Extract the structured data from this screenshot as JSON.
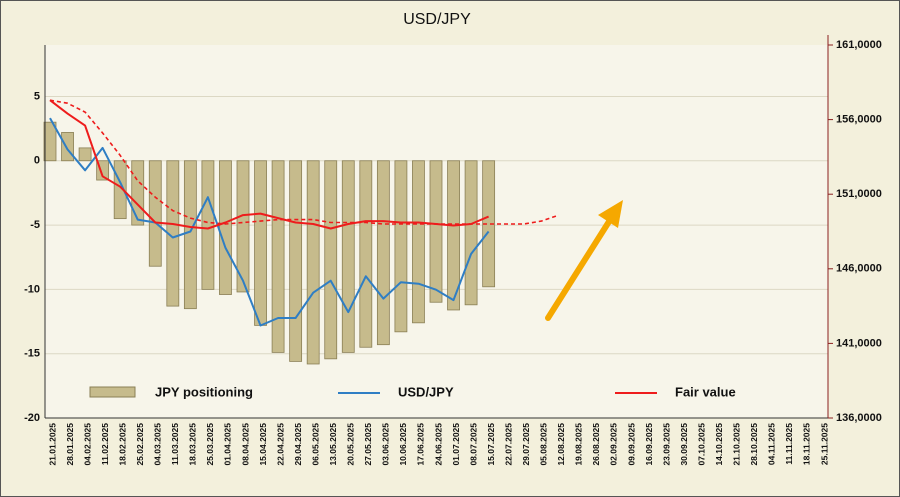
{
  "chart_data": {
    "type": "bar_line",
    "title": "USD/JPY",
    "categories": [
      "21.01.2025",
      "28.01.2025",
      "04.02.2025",
      "11.02.2025",
      "18.02.2025",
      "25.02.2025",
      "04.03.2025",
      "11.03.2025",
      "18.03.2025",
      "25.03.2025",
      "01.04.2025",
      "08.04.2025",
      "15.04.2025",
      "22.04.2025",
      "29.04.2025",
      "06.05.2025",
      "13.05.2025",
      "20.05.2025",
      "27.05.2025",
      "03.06.2025",
      "10.06.2025",
      "17.06.2025",
      "24.06.2025",
      "01.07.2025",
      "08.07.2025",
      "15.07.2025",
      "22.07.2025",
      "29.07.2025",
      "05.08.2025",
      "12.08.2025",
      "19.08.2025",
      "26.08.2025",
      "02.09.2025",
      "09.09.2025",
      "16.09.2025",
      "23.09.2025",
      "30.09.2025",
      "07.10.2025",
      "14.10.2025",
      "21.10.2025",
      "28.10.2025",
      "04.11.2025",
      "11.11.2025",
      "18.11.2025",
      "25.11.2025"
    ],
    "series": [
      {
        "name": "JPY positioning",
        "kind": "bar",
        "color": "#c6bb8c",
        "values": [
          3.0,
          2.2,
          1.0,
          -1.5,
          -4.5,
          -5.0,
          -8.2,
          -11.3,
          -11.5,
          -10.0,
          -10.4,
          -10.2,
          -12.8,
          -14.9,
          -15.6,
          -15.8,
          -15.4,
          -14.9,
          -14.5,
          -14.3,
          -13.3,
          -12.6,
          -11.0,
          -11.6,
          -11.2,
          -9.8,
          null,
          null,
          null,
          null,
          null,
          null,
          null,
          null,
          null,
          null,
          null,
          null,
          null,
          null,
          null,
          null,
          null,
          null,
          null
        ]
      },
      {
        "name": "USD/JPY",
        "kind": "line",
        "axis": "y2",
        "color": "#2f7ec4",
        "values": [
          156.1,
          154.0,
          152.6,
          154.1,
          151.8,
          149.3,
          149.1,
          148.1,
          148.5,
          150.8,
          147.4,
          145.2,
          142.2,
          142.7,
          142.7,
          144.4,
          145.2,
          143.1,
          145.5,
          144.0,
          145.1,
          145.0,
          144.6,
          143.9,
          147.0,
          148.5,
          null,
          null,
          null,
          null,
          null,
          null,
          null,
          null,
          null,
          null,
          null,
          null,
          null,
          null,
          null,
          null,
          null,
          null,
          null
        ]
      },
      {
        "name": "Fair value",
        "kind": "line",
        "axis": "y2",
        "color": "#ee1c1c",
        "values": [
          157.3,
          156.4,
          155.6,
          152.2,
          151.5,
          150.3,
          149.1,
          149.0,
          148.8,
          148.7,
          149.1,
          149.6,
          149.7,
          149.4,
          149.1,
          149.0,
          148.7,
          149.0,
          149.2,
          149.2,
          149.1,
          149.1,
          149.0,
          148.9,
          149.0,
          149.5,
          null,
          null,
          null,
          null,
          null,
          null,
          null,
          null,
          null,
          null,
          null,
          null,
          null,
          null,
          null,
          null,
          null,
          null,
          null
        ]
      },
      {
        "kind": "dashed",
        "axis": "y2",
        "color": "#ee1c1c",
        "values": [
          157.3,
          157.1,
          156.5,
          155.1,
          153.6,
          151.9,
          150.8,
          149.9,
          149.4,
          149.1,
          149.0,
          149.1,
          149.2,
          149.3,
          149.3,
          149.3,
          149.1,
          149.1,
          149.1,
          149.0,
          149.0,
          149.0,
          149.0,
          149.0,
          149.0,
          149.0,
          149.0,
          149.0,
          149.2,
          149.6,
          null,
          null,
          null,
          null,
          null,
          null,
          null,
          null,
          null,
          null,
          null,
          null,
          null,
          null,
          null
        ]
      }
    ],
    "ylim": [
      -20,
      9
    ],
    "yticks": [
      -20,
      -15,
      -10,
      -5,
      0,
      5
    ],
    "y2lim": [
      136,
      161
    ],
    "y2ticks": [
      {
        "value": 136,
        "label": "136,0000"
      },
      {
        "value": 141,
        "label": "141,0000"
      },
      {
        "value": 146,
        "label": "146,0000"
      },
      {
        "value": 151,
        "label": "151,0000"
      },
      {
        "value": 156,
        "label": "156,0000"
      },
      {
        "value": 161,
        "label": "161,0000"
      }
    ],
    "grid": true
  }
}
